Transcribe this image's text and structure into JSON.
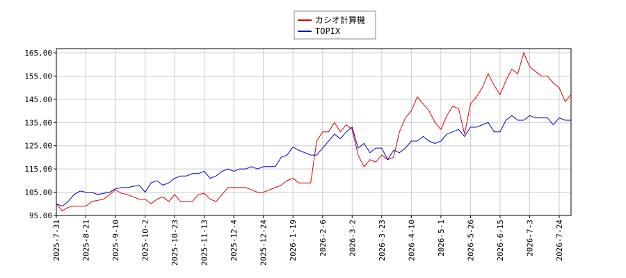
{
  "chart_data": {
    "type": "line",
    "categories": [
      "2025-7-31",
      null,
      null,
      null,
      null,
      "2025-8-21",
      null,
      null,
      null,
      null,
      "2025-9-10",
      null,
      null,
      null,
      null,
      "2025-10-2",
      null,
      null,
      null,
      null,
      "2025-10-23",
      null,
      null,
      null,
      null,
      "2025-11-13",
      null,
      null,
      null,
      null,
      "2025-12-4",
      null,
      null,
      null,
      null,
      "2025-12-24",
      null,
      null,
      null,
      null,
      "2026-1-19",
      null,
      null,
      null,
      null,
      "2026-2-6",
      null,
      null,
      null,
      null,
      "2026-3-2",
      null,
      null,
      null,
      null,
      "2026-3-23",
      null,
      null,
      null,
      null,
      "2026-4-10",
      null,
      null,
      null,
      null,
      "2026-5-1",
      null,
      null,
      null,
      null,
      "2026-5-26",
      null,
      null,
      null,
      null,
      "2026-6-15",
      null,
      null,
      null,
      null,
      "2026-7-3",
      null,
      null,
      null,
      null,
      "2026-7-24",
      null,
      null
    ],
    "series": [
      {
        "name": "カシオ計算機",
        "color": "#dd0000",
        "values": [
          100,
          97,
          98.5,
          99,
          99,
          99,
          101,
          101.5,
          102,
          104,
          106,
          104.5,
          104,
          103,
          102,
          102,
          100,
          102,
          103,
          101,
          104,
          101,
          101,
          101,
          104,
          104.5,
          102,
          101,
          104,
          107,
          107,
          107,
          107,
          106,
          105,
          105,
          106,
          107,
          108,
          110,
          111,
          109,
          109,
          109,
          127,
          131,
          131,
          135,
          131,
          134,
          132,
          121,
          116,
          119,
          118,
          121,
          119,
          120,
          131,
          137,
          140,
          146,
          143,
          140,
          135,
          132,
          138,
          142,
          141,
          130,
          143,
          146,
          150,
          156,
          151,
          147,
          153,
          158,
          156,
          165,
          159,
          157,
          155,
          155,
          152,
          150,
          144,
          147
        ]
      },
      {
        "name": "TOPIX",
        "color": "#0000cc",
        "values": [
          100,
          99,
          101,
          104,
          105.5,
          105,
          105,
          104,
          104.5,
          105,
          106.5,
          107,
          107,
          107.5,
          108,
          105,
          109,
          110,
          108,
          109,
          111,
          112,
          112,
          113,
          113,
          114,
          111,
          112,
          114,
          115,
          114,
          115,
          115,
          116,
          115,
          116,
          116,
          116,
          120,
          121,
          124.5,
          123,
          122,
          121,
          121,
          124,
          127,
          130,
          128,
          131,
          133,
          124,
          126,
          122,
          124,
          124,
          119,
          123,
          122,
          124,
          127,
          127,
          129,
          127,
          126,
          127,
          130,
          131,
          132,
          129,
          133,
          133,
          134,
          135,
          131,
          131,
          136,
          138,
          136,
          136,
          138,
          137,
          137,
          137,
          134,
          137,
          136,
          136
        ]
      }
    ],
    "ylim": [
      95,
      166.8
    ],
    "yticks": [
      {
        "value": 95,
        "label": "95.00"
      },
      {
        "value": 105,
        "label": "105.00"
      },
      {
        "value": 115,
        "label": "115.00"
      },
      {
        "value": 125,
        "label": "125.00"
      },
      {
        "value": 135,
        "label": "135.00"
      },
      {
        "value": 145,
        "label": "145.00"
      },
      {
        "value": 155,
        "label": "155.00"
      },
      {
        "value": 165,
        "label": "165.00"
      }
    ],
    "grid": true
  }
}
